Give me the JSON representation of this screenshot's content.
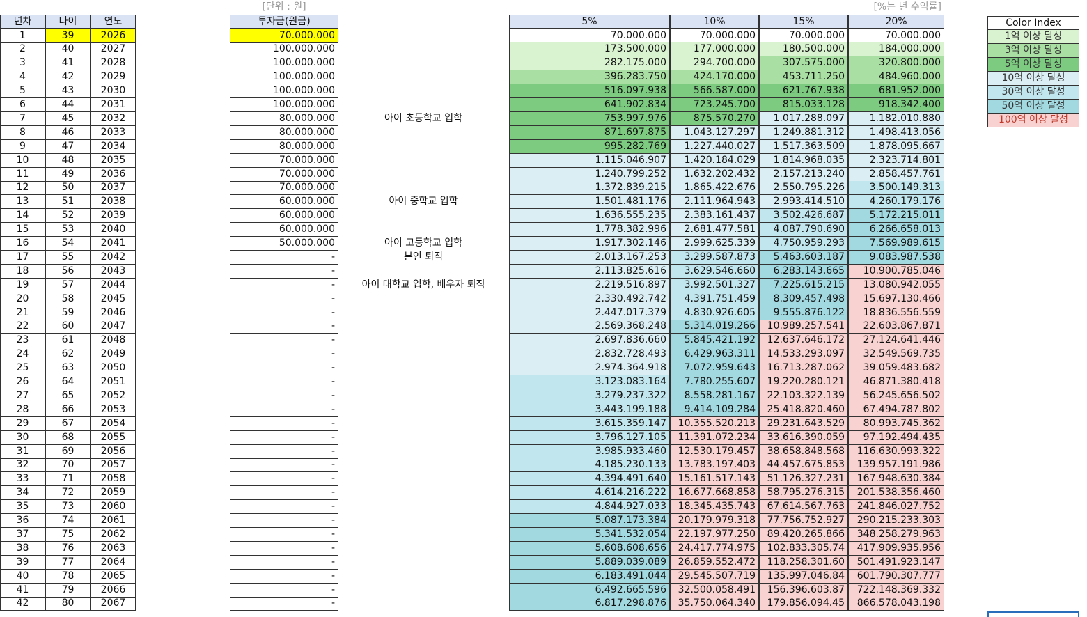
{
  "left_table": {
    "headers": [
      "년차",
      "나이",
      "연도"
    ],
    "rows": [
      [
        1,
        39,
        2026
      ],
      [
        2,
        40,
        2027
      ],
      [
        3,
        41,
        2028
      ],
      [
        4,
        42,
        2029
      ],
      [
        5,
        43,
        2030
      ],
      [
        6,
        44,
        2031
      ],
      [
        7,
        45,
        2032
      ],
      [
        8,
        46,
        2033
      ],
      [
        9,
        47,
        2034
      ],
      [
        10,
        48,
        2035
      ],
      [
        11,
        49,
        2036
      ],
      [
        12,
        50,
        2037
      ],
      [
        13,
        51,
        2038
      ],
      [
        14,
        52,
        2039
      ],
      [
        15,
        53,
        2040
      ],
      [
        16,
        54,
        2041
      ],
      [
        17,
        55,
        2042
      ],
      [
        18,
        56,
        2043
      ],
      [
        19,
        57,
        2044
      ],
      [
        20,
        58,
        2045
      ],
      [
        21,
        59,
        2046
      ],
      [
        22,
        60,
        2047
      ],
      [
        23,
        61,
        2048
      ],
      [
        24,
        62,
        2049
      ],
      [
        25,
        63,
        2050
      ],
      [
        26,
        64,
        2051
      ],
      [
        27,
        65,
        2052
      ],
      [
        28,
        66,
        2053
      ],
      [
        29,
        67,
        2054
      ],
      [
        30,
        68,
        2055
      ],
      [
        31,
        69,
        2056
      ],
      [
        32,
        70,
        2057
      ],
      [
        33,
        71,
        2058
      ],
      [
        34,
        72,
        2059
      ],
      [
        35,
        73,
        2060
      ],
      [
        36,
        74,
        2061
      ],
      [
        37,
        75,
        2062
      ],
      [
        38,
        76,
        2063
      ],
      [
        39,
        77,
        2064
      ],
      [
        40,
        78,
        2065
      ],
      [
        41,
        79,
        2066
      ],
      [
        42,
        80,
        2067
      ]
    ]
  },
  "investment": {
    "unit_note": "[단위 : 원]",
    "header": "투자금(원금)",
    "rows": [
      "70.000.000",
      "100.000.000",
      "100.000.000",
      "100.000.000",
      "100.000.000",
      "100.000.000",
      "80.000.000",
      "80.000.000",
      "80.000.000",
      "70.000.000",
      "70.000.000",
      "70.000.000",
      "60.000.000",
      "60.000.000",
      "60.000.000",
      "50.000.000",
      "-",
      "-",
      "-",
      "-",
      "-",
      "-",
      "-",
      "-",
      "-",
      "-",
      "-",
      "-",
      "-",
      "-",
      "-",
      "-",
      "-",
      "-",
      "-",
      "-",
      "-",
      "-",
      "-",
      "-",
      "-",
      "-"
    ]
  },
  "notes": [
    null,
    null,
    null,
    null,
    null,
    null,
    "아이 초등학교 입학",
    null,
    null,
    null,
    null,
    null,
    "아이 중학교 입학",
    null,
    null,
    "아이 고등학교 입학",
    "본인 퇴직",
    null,
    "아이 대학교 입학, 배우자 퇴직",
    null,
    null,
    null,
    null,
    null,
    null,
    null,
    null,
    null,
    null,
    null,
    null,
    null,
    null,
    null,
    null,
    null,
    null,
    null,
    null,
    null,
    null,
    null
  ],
  "results": {
    "rate_note": "[%는 년 수익률]",
    "headers": [
      "5%",
      "10%",
      "15%",
      "20%"
    ],
    "rows": [
      [
        {
          "text": "70.000.000",
          "color": "#ffffff"
        },
        {
          "text": "70.000.000",
          "color": "#ffffff"
        },
        {
          "text": "70.000.000",
          "color": "#ffffff"
        },
        {
          "text": "70.000.000",
          "color": "#ffffff"
        }
      ],
      [
        {
          "text": "173.500.000",
          "color": "#d9f2d0"
        },
        {
          "text": "177.000.000",
          "color": "#d9f2d0"
        },
        {
          "text": "180.500.000",
          "color": "#d9f2d0"
        },
        {
          "text": "184.000.000",
          "color": "#d9f2d0"
        }
      ],
      [
        {
          "text": "282.175.000",
          "color": "#d9f2d0"
        },
        {
          "text": "294.700.000",
          "color": "#d9f2d0"
        },
        {
          "text": "307.575.000",
          "color": "#a9dfa3"
        },
        {
          "text": "320.800.000",
          "color": "#a9dfa3"
        }
      ],
      [
        {
          "text": "396.283.750",
          "color": "#a9dfa3"
        },
        {
          "text": "424.170.000",
          "color": "#a9dfa3"
        },
        {
          "text": "453.711.250",
          "color": "#a9dfa3"
        },
        {
          "text": "484.960.000",
          "color": "#a9dfa3"
        }
      ],
      [
        {
          "text": "516.097.938",
          "color": "#7ccb80"
        },
        {
          "text": "566.587.000",
          "color": "#7ccb80"
        },
        {
          "text": "621.767.938",
          "color": "#7ccb80"
        },
        {
          "text": "681.952.000",
          "color": "#7ccb80"
        }
      ],
      [
        {
          "text": "641.902.834",
          "color": "#7ccb80"
        },
        {
          "text": "723.245.700",
          "color": "#7ccb80"
        },
        {
          "text": "815.033.128",
          "color": "#7ccb80"
        },
        {
          "text": "918.342.400",
          "color": "#7ccb80"
        }
      ],
      [
        {
          "text": "753.997.976",
          "color": "#7ccb80"
        },
        {
          "text": "875.570.270",
          "color": "#7ccb80"
        },
        {
          "text": "1.017.288.097",
          "color": "#daeef3"
        },
        {
          "text": "1.182.010.880",
          "color": "#daeef3"
        }
      ],
      [
        {
          "text": "871.697.875",
          "color": "#7ccb80"
        },
        {
          "text": "1.043.127.297",
          "color": "#daeef3"
        },
        {
          "text": "1.249.881.312",
          "color": "#daeef3"
        },
        {
          "text": "1.498.413.056",
          "color": "#daeef3"
        }
      ],
      [
        {
          "text": "995.282.769",
          "color": "#7ccb80"
        },
        {
          "text": "1.227.440.027",
          "color": "#daeef3"
        },
        {
          "text": "1.517.363.509",
          "color": "#daeef3"
        },
        {
          "text": "1.878.095.667",
          "color": "#daeef3"
        }
      ],
      [
        {
          "text": "1.115.046.907",
          "color": "#daeef3"
        },
        {
          "text": "1.420.184.029",
          "color": "#daeef3"
        },
        {
          "text": "1.814.968.035",
          "color": "#daeef3"
        },
        {
          "text": "2.323.714.801",
          "color": "#daeef3"
        }
      ],
      [
        {
          "text": "1.240.799.252",
          "color": "#daeef3"
        },
        {
          "text": "1.632.202.432",
          "color": "#daeef3"
        },
        {
          "text": "2.157.213.240",
          "color": "#daeef3"
        },
        {
          "text": "2.858.457.761",
          "color": "#daeef3"
        }
      ],
      [
        {
          "text": "1.372.839.215",
          "color": "#daeef3"
        },
        {
          "text": "1.865.422.676",
          "color": "#daeef3"
        },
        {
          "text": "2.550.795.226",
          "color": "#daeef3"
        },
        {
          "text": "3.500.149.313",
          "color": "#c2e6ee"
        }
      ],
      [
        {
          "text": "1.501.481.176",
          "color": "#daeef3"
        },
        {
          "text": "2.111.964.943",
          "color": "#daeef3"
        },
        {
          "text": "2.993.414.510",
          "color": "#daeef3"
        },
        {
          "text": "4.260.179.176",
          "color": "#c2e6ee"
        }
      ],
      [
        {
          "text": "1.636.555.235",
          "color": "#daeef3"
        },
        {
          "text": "2.383.161.437",
          "color": "#daeef3"
        },
        {
          "text": "3.502.426.687",
          "color": "#c2e6ee"
        },
        {
          "text": "5.172.215.011",
          "color": "#a2d8e0"
        }
      ],
      [
        {
          "text": "1.778.382.996",
          "color": "#daeef3"
        },
        {
          "text": "2.681.477.581",
          "color": "#daeef3"
        },
        {
          "text": "4.087.790.690",
          "color": "#c2e6ee"
        },
        {
          "text": "6.266.658.013",
          "color": "#a2d8e0"
        }
      ],
      [
        {
          "text": "1.917.302.146",
          "color": "#daeef3"
        },
        {
          "text": "2.999.625.339",
          "color": "#daeef3"
        },
        {
          "text": "4.750.959.293",
          "color": "#c2e6ee"
        },
        {
          "text": "7.569.989.615",
          "color": "#a2d8e0"
        }
      ],
      [
        {
          "text": "2.013.167.253",
          "color": "#daeef3"
        },
        {
          "text": "3.299.587.873",
          "color": "#c2e6ee"
        },
        {
          "text": "5.463.603.187",
          "color": "#a2d8e0"
        },
        {
          "text": "9.083.987.538",
          "color": "#a2d8e0"
        }
      ],
      [
        {
          "text": "2.113.825.616",
          "color": "#daeef3"
        },
        {
          "text": "3.629.546.660",
          "color": "#c2e6ee"
        },
        {
          "text": "6.283.143.665",
          "color": "#a2d8e0"
        },
        {
          "text": "10.900.785.046",
          "color": "#f8d2d0"
        }
      ],
      [
        {
          "text": "2.219.516.897",
          "color": "#daeef3"
        },
        {
          "text": "3.992.501.327",
          "color": "#c2e6ee"
        },
        {
          "text": "7.225.615.215",
          "color": "#a2d8e0"
        },
        {
          "text": "13.080.942.055",
          "color": "#f8d2d0"
        }
      ],
      [
        {
          "text": "2.330.492.742",
          "color": "#daeef3"
        },
        {
          "text": "4.391.751.459",
          "color": "#c2e6ee"
        },
        {
          "text": "8.309.457.498",
          "color": "#a2d8e0"
        },
        {
          "text": "15.697.130.466",
          "color": "#f8d2d0"
        }
      ],
      [
        {
          "text": "2.447.017.379",
          "color": "#daeef3"
        },
        {
          "text": "4.830.926.605",
          "color": "#c2e6ee"
        },
        {
          "text": "9.555.876.122",
          "color": "#a2d8e0"
        },
        {
          "text": "18.836.556.559",
          "color": "#f8d2d0"
        }
      ],
      [
        {
          "text": "2.569.368.248",
          "color": "#daeef3"
        },
        {
          "text": "5.314.019.266",
          "color": "#a2d8e0"
        },
        {
          "text": "10.989.257.541",
          "color": "#f8d2d0"
        },
        {
          "text": "22.603.867.871",
          "color": "#f8d2d0"
        }
      ],
      [
        {
          "text": "2.697.836.660",
          "color": "#daeef3"
        },
        {
          "text": "5.845.421.192",
          "color": "#a2d8e0"
        },
        {
          "text": "12.637.646.172",
          "color": "#f8d2d0"
        },
        {
          "text": "27.124.641.446",
          "color": "#f8d2d0"
        }
      ],
      [
        {
          "text": "2.832.728.493",
          "color": "#daeef3"
        },
        {
          "text": "6.429.963.311",
          "color": "#a2d8e0"
        },
        {
          "text": "14.533.293.097",
          "color": "#f8d2d0"
        },
        {
          "text": "32.549.569.735",
          "color": "#f8d2d0"
        }
      ],
      [
        {
          "text": "2.974.364.918",
          "color": "#daeef3"
        },
        {
          "text": "7.072.959.643",
          "color": "#a2d8e0"
        },
        {
          "text": "16.713.287.062",
          "color": "#f8d2d0"
        },
        {
          "text": "39.059.483.682",
          "color": "#f8d2d0"
        }
      ],
      [
        {
          "text": "3.123.083.164",
          "color": "#c2e6ee"
        },
        {
          "text": "7.780.255.607",
          "color": "#a2d8e0"
        },
        {
          "text": "19.220.280.121",
          "color": "#f8d2d0"
        },
        {
          "text": "46.871.380.418",
          "color": "#f8d2d0"
        }
      ],
      [
        {
          "text": "3.279.237.322",
          "color": "#c2e6ee"
        },
        {
          "text": "8.558.281.167",
          "color": "#a2d8e0"
        },
        {
          "text": "22.103.322.139",
          "color": "#f8d2d0"
        },
        {
          "text": "56.245.656.502",
          "color": "#f8d2d0"
        }
      ],
      [
        {
          "text": "3.443.199.188",
          "color": "#c2e6ee"
        },
        {
          "text": "9.414.109.284",
          "color": "#a2d8e0"
        },
        {
          "text": "25.418.820.460",
          "color": "#f8d2d0"
        },
        {
          "text": "67.494.787.802",
          "color": "#f8d2d0"
        }
      ],
      [
        {
          "text": "3.615.359.147",
          "color": "#c2e6ee"
        },
        {
          "text": "10.355.520.213",
          "color": "#f8d2d0"
        },
        {
          "text": "29.231.643.529",
          "color": "#f8d2d0"
        },
        {
          "text": "80.993.745.362",
          "color": "#f8d2d0"
        }
      ],
      [
        {
          "text": "3.796.127.105",
          "color": "#c2e6ee"
        },
        {
          "text": "11.391.072.234",
          "color": "#f8d2d0"
        },
        {
          "text": "33.616.390.059",
          "color": "#f8d2d0"
        },
        {
          "text": "97.192.494.435",
          "color": "#f8d2d0"
        }
      ],
      [
        {
          "text": "3.985.933.460",
          "color": "#c2e6ee"
        },
        {
          "text": "12.530.179.457",
          "color": "#f8d2d0"
        },
        {
          "text": "38.658.848.568",
          "color": "#f8d2d0"
        },
        {
          "text": "116.630.993.322",
          "color": "#f8d2d0"
        }
      ],
      [
        {
          "text": "4.185.230.133",
          "color": "#c2e6ee"
        },
        {
          "text": "13.783.197.403",
          "color": "#f8d2d0"
        },
        {
          "text": "44.457.675.853",
          "color": "#f8d2d0"
        },
        {
          "text": "139.957.191.986",
          "color": "#f8d2d0"
        }
      ],
      [
        {
          "text": "4.394.491.640",
          "color": "#c2e6ee"
        },
        {
          "text": "15.161.517.143",
          "color": "#f8d2d0"
        },
        {
          "text": "51.126.327.231",
          "color": "#f8d2d0"
        },
        {
          "text": "167.948.630.384",
          "color": "#f8d2d0"
        }
      ],
      [
        {
          "text": "4.614.216.222",
          "color": "#c2e6ee"
        },
        {
          "text": "16.677.668.858",
          "color": "#f8d2d0"
        },
        {
          "text": "58.795.276.315",
          "color": "#f8d2d0"
        },
        {
          "text": "201.538.356.460",
          "color": "#f8d2d0"
        }
      ],
      [
        {
          "text": "4.844.927.033",
          "color": "#c2e6ee"
        },
        {
          "text": "18.345.435.743",
          "color": "#f8d2d0"
        },
        {
          "text": "67.614.567.763",
          "color": "#f8d2d0"
        },
        {
          "text": "241.846.027.752",
          "color": "#f8d2d0"
        }
      ],
      [
        {
          "text": "5.087.173.384",
          "color": "#a2d8e0"
        },
        {
          "text": "20.179.979.318",
          "color": "#f8d2d0"
        },
        {
          "text": "77.756.752.927",
          "color": "#f8d2d0"
        },
        {
          "text": "290.215.233.303",
          "color": "#f8d2d0"
        }
      ],
      [
        {
          "text": "5.341.532.054",
          "color": "#a2d8e0"
        },
        {
          "text": "22.197.977.250",
          "color": "#f8d2d0"
        },
        {
          "text": "89.420.265.866",
          "color": "#f8d2d0"
        },
        {
          "text": "348.258.279.963",
          "color": "#f8d2d0"
        }
      ],
      [
        {
          "text": "5.608.608.656",
          "color": "#a2d8e0"
        },
        {
          "text": "24.417.774.975",
          "color": "#f8d2d0"
        },
        {
          "text": "102.833.305.74",
          "color": "#f8d2d0"
        },
        {
          "text": "417.909.935.956",
          "color": "#f8d2d0"
        }
      ],
      [
        {
          "text": "5.889.039.089",
          "color": "#a2d8e0"
        },
        {
          "text": "26.859.552.472",
          "color": "#f8d2d0"
        },
        {
          "text": "118.258.301.60",
          "color": "#f8d2d0"
        },
        {
          "text": "501.491.923.147",
          "color": "#f8d2d0"
        }
      ],
      [
        {
          "text": "6.183.491.044",
          "color": "#a2d8e0"
        },
        {
          "text": "29.545.507.719",
          "color": "#f8d2d0"
        },
        {
          "text": "135.997.046.84",
          "color": "#f8d2d0"
        },
        {
          "text": "601.790.307.777",
          "color": "#f8d2d0"
        }
      ],
      [
        {
          "text": "6.492.665.596",
          "color": "#a2d8e0"
        },
        {
          "text": "32.500.058.491",
          "color": "#f8d2d0"
        },
        {
          "text": "156.396.603.87",
          "color": "#f8d2d0"
        },
        {
          "text": "722.148.369.332",
          "color": "#f8d2d0"
        }
      ],
      [
        {
          "text": "6.817.298.876",
          "color": "#a2d8e0"
        },
        {
          "text": "35.750.064.340",
          "color": "#f8d2d0"
        },
        {
          "text": "179.856.094.45",
          "color": "#f8d2d0"
        },
        {
          "text": "866.578.043.198",
          "color": "#f8d2d0"
        }
      ]
    ]
  },
  "color_index": {
    "title": "Color Index",
    "items": [
      {
        "label": "1억 이상 달성",
        "color": "#d9f2d0",
        "text_color": "#333333"
      },
      {
        "label": "3억 이상 달성",
        "color": "#a9dfa3",
        "text_color": "#333333"
      },
      {
        "label": "5억 이상 달성",
        "color": "#7ccb80",
        "text_color": "#333333"
      },
      {
        "label": "10억 이상 달성",
        "color": "#daeef3",
        "text_color": "#333333"
      },
      {
        "label": "30억 이상 달성",
        "color": "#c2e6ee",
        "text_color": "#333333"
      },
      {
        "label": "50억 이상 달성",
        "color": "#a2d8e0",
        "text_color": "#333333"
      },
      {
        "label": "100억 이상 달성",
        "color": "#f8d2d0",
        "text_color": "#c0392b"
      }
    ]
  }
}
